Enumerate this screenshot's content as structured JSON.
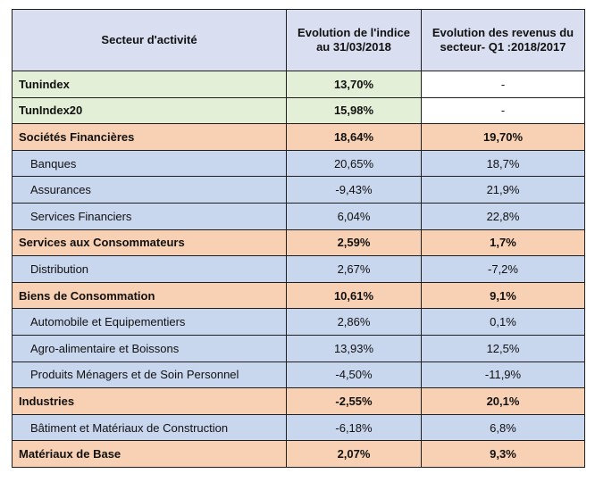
{
  "header": {
    "col1": "Secteur d'activité",
    "col2_line1": "Evolution  de l'indice",
    "col2_line2": "au 31/03/2018",
    "col3_line1": "Evolution  des revenus du",
    "col3_line2": "secteur- Q1 :2018/2017"
  },
  "rows": [
    {
      "type": "index",
      "label": "Tunindex",
      "index": "13,70%",
      "revenue": "-"
    },
    {
      "type": "index",
      "label": "TunIndex20",
      "index": "15,98%",
      "revenue": "-"
    },
    {
      "type": "sector",
      "label": "Sociétés Financières",
      "index": "18,64%",
      "revenue": "19,70%"
    },
    {
      "type": "sub",
      "label": "Banques",
      "index": "20,65%",
      "revenue": "18,7%"
    },
    {
      "type": "sub",
      "label": "Assurances",
      "index": "-9,43%",
      "revenue": "21,9%"
    },
    {
      "type": "sub",
      "label": "Services Financiers",
      "index": "6,04%",
      "revenue": "22,8%"
    },
    {
      "type": "sector",
      "label": "Services aux Consommateurs",
      "index": "2,59%",
      "revenue": "1,7%"
    },
    {
      "type": "sub",
      "label": "Distribution",
      "index": "2,67%",
      "revenue": "-7,2%"
    },
    {
      "type": "sector",
      "label": "Biens de Consommation",
      "index": "10,61%",
      "revenue": "9,1%"
    },
    {
      "type": "sub",
      "label": "Automobile et Equipementiers",
      "index": "2,86%",
      "revenue": "0,1%"
    },
    {
      "type": "sub",
      "label": "Agro-alimentaire et Boissons",
      "index": "13,93%",
      "revenue": "12,5%"
    },
    {
      "type": "sub",
      "label": "Produits Ménagers et de Soin Personnel",
      "index": "-4,50%",
      "revenue": "-11,9%"
    },
    {
      "type": "sector",
      "label": "Industries",
      "index": "-2,55%",
      "revenue": "20,1%"
    },
    {
      "type": "sub",
      "label": "Bâtiment et Matériaux de Construction",
      "index": "-6,18%",
      "revenue": "6,8%"
    },
    {
      "type": "sector",
      "label": "Matériaux de Base",
      "index": "2,07%",
      "revenue": "9,3%"
    }
  ],
  "colors": {
    "header": "#d9dff0",
    "index_row": "#e3efd6",
    "sector_row": "#f8d0b4",
    "sub_row": "#c8d6ee"
  }
}
